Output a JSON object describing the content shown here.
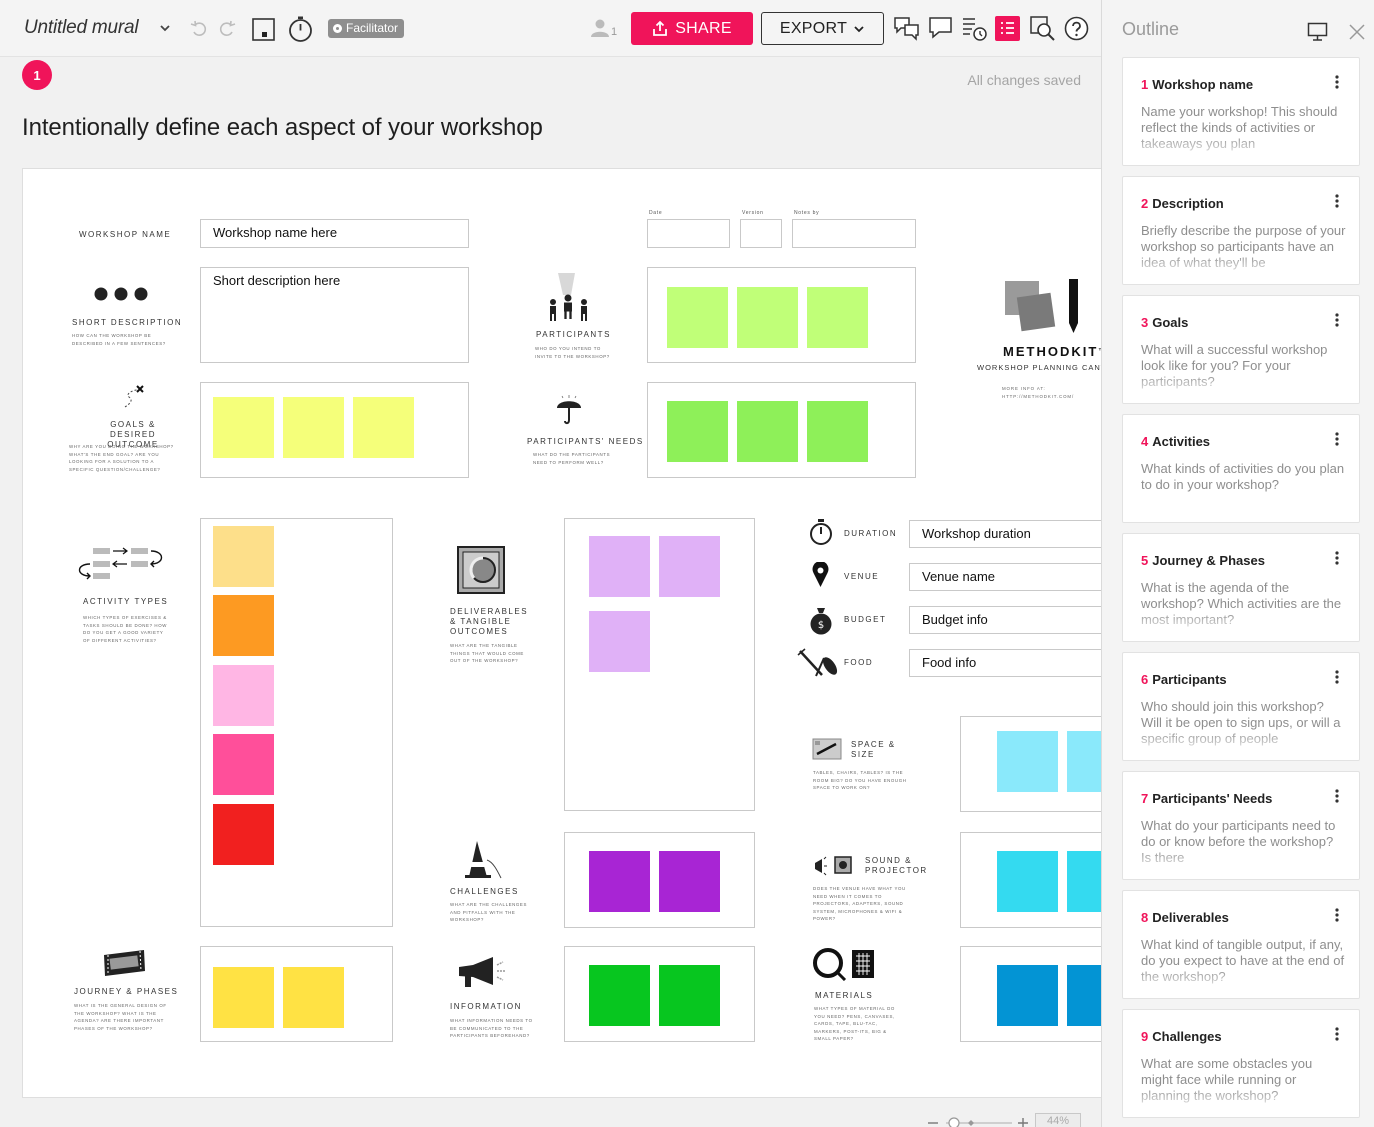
{
  "toolbar": {
    "mural_title": "Untitled mural",
    "facilitator_badge": "Facilitator",
    "user_count": "1",
    "share_label": "SHARE",
    "export_label": "EXPORT"
  },
  "status": {
    "notification_count": "1",
    "saved_text": "All changes saved"
  },
  "area_title": "Intentionally define each aspect of your workshop",
  "canvas": {
    "workshop_name_label": "Workshop name",
    "workshop_name_value": "Workshop name here",
    "date_label": "Date",
    "version_label": "Version",
    "notes_by_label": "Notes by",
    "short_description_label": "Short description",
    "short_description_sub": "How can the workshop be described in a few sentences?",
    "short_description_value": "Short description here",
    "participants_label": "Participants",
    "participants_sub": "Who do you intend to invite to the workshop?",
    "goals_label": "Goals & desired outcome",
    "goals_sub": "Why are you doing the workshop? What's the end goal? Are you looking for a solution to a specific question/challenge?",
    "participants_needs_label": "Participants' needs",
    "participants_needs_sub": "What do the participants need to perform well?",
    "methodkit_brand": "METHODKIT",
    "methodkit_tm": "™",
    "methodkit_subtitle": "Workshop planning canvas",
    "methodkit_info": "More info at: http://methodkit.com/",
    "activity_types_label": "Activity types",
    "activity_types_sub": "Which types of exercises & tasks should be done? How do you get a good variety of different activities?",
    "deliverables_label": "Deliverables & tangible outcomes",
    "deliverables_sub": "What are the tangible things that would come out of the workshop?",
    "duration_label": "Duration",
    "duration_value": "Workshop duration",
    "venue_label": "Venue",
    "venue_value": "Venue name",
    "budget_label": "Budget",
    "budget_value": "Budget info",
    "food_label": "Food",
    "food_value": "Food info",
    "space_label": "Space & size",
    "space_sub": "Tables, chairs, tables? Is the room big? Do you have enough space to work on?",
    "challenges_label": "Challenges",
    "challenges_sub": "What are the challenges and pitfalls with the workshop?",
    "sound_label": "Sound & projector",
    "sound_sub": "Does the venue have what you need when it comes to projectors, adapters, sound system, microphones & wifi & power?",
    "journey_label": "Journey & phases",
    "journey_sub": "What is the general design of the workshop? What is the agenda? Are there important phases of the workshop?",
    "information_label": "Information",
    "information_sub": "What information needs to be communicated to the participants beforehand?",
    "materials_label": "Materials",
    "materials_sub": "What types of material do you need? Pens, canvases, cards, tape, blu-tac, markers, post-its, big & small paper?"
  },
  "colors": {
    "accent": "#f0145a",
    "sticky_light_green": "#c0ff78",
    "sticky_green": "#8ef059",
    "sticky_yellow": "#f5ff7a",
    "sticky_orange_light": "#fddf8a",
    "sticky_orange": "#fd9a22",
    "sticky_pink_light": "#ffb6e4",
    "sticky_pink": "#ff4f9a",
    "sticky_red": "#f1201f",
    "sticky_lavender": "#e0b1f7",
    "sticky_purple": "#a825d4",
    "sticky_gold": "#ffe244",
    "sticky_bright_green": "#07c61f",
    "sticky_light_blue": "#8ae9fb",
    "sticky_cyan": "#34daf0",
    "sticky_blue": "#0394d4"
  },
  "zoom": {
    "level": "44%"
  },
  "outline": {
    "title": "Outline",
    "items": [
      {
        "num": "1",
        "name": "Workshop name",
        "text": "Name your workshop! This should reflect the kinds of activities or takeaways you plan"
      },
      {
        "num": "2",
        "name": "Description",
        "text": "Briefly describe the purpose of your workshop so participants have an idea of what they'll be"
      },
      {
        "num": "3",
        "name": "Goals",
        "text": "What will a successful workshop look like for you? For your participants?"
      },
      {
        "num": "4",
        "name": "Activities",
        "text": "What kinds of activities do you plan to do in your workshop?"
      },
      {
        "num": "5",
        "name": "Journey & Phases",
        "text": "What is the agenda of the workshop? Which activities are the most important?"
      },
      {
        "num": "6",
        "name": "Participants",
        "text": "Who should join this workshop? Will it be open to sign ups, or will a specific group of people"
      },
      {
        "num": "7",
        "name": "Participants' Needs",
        "text": "What do your participants need to do or know before the workshop? Is there"
      },
      {
        "num": "8",
        "name": "Deliverables",
        "text": "What kind of tangible output, if any, do you expect to have at the end of the workshop?"
      },
      {
        "num": "9",
        "name": "Challenges",
        "text": "What are some obstacles you might face while running or planning the workshop?"
      }
    ]
  }
}
